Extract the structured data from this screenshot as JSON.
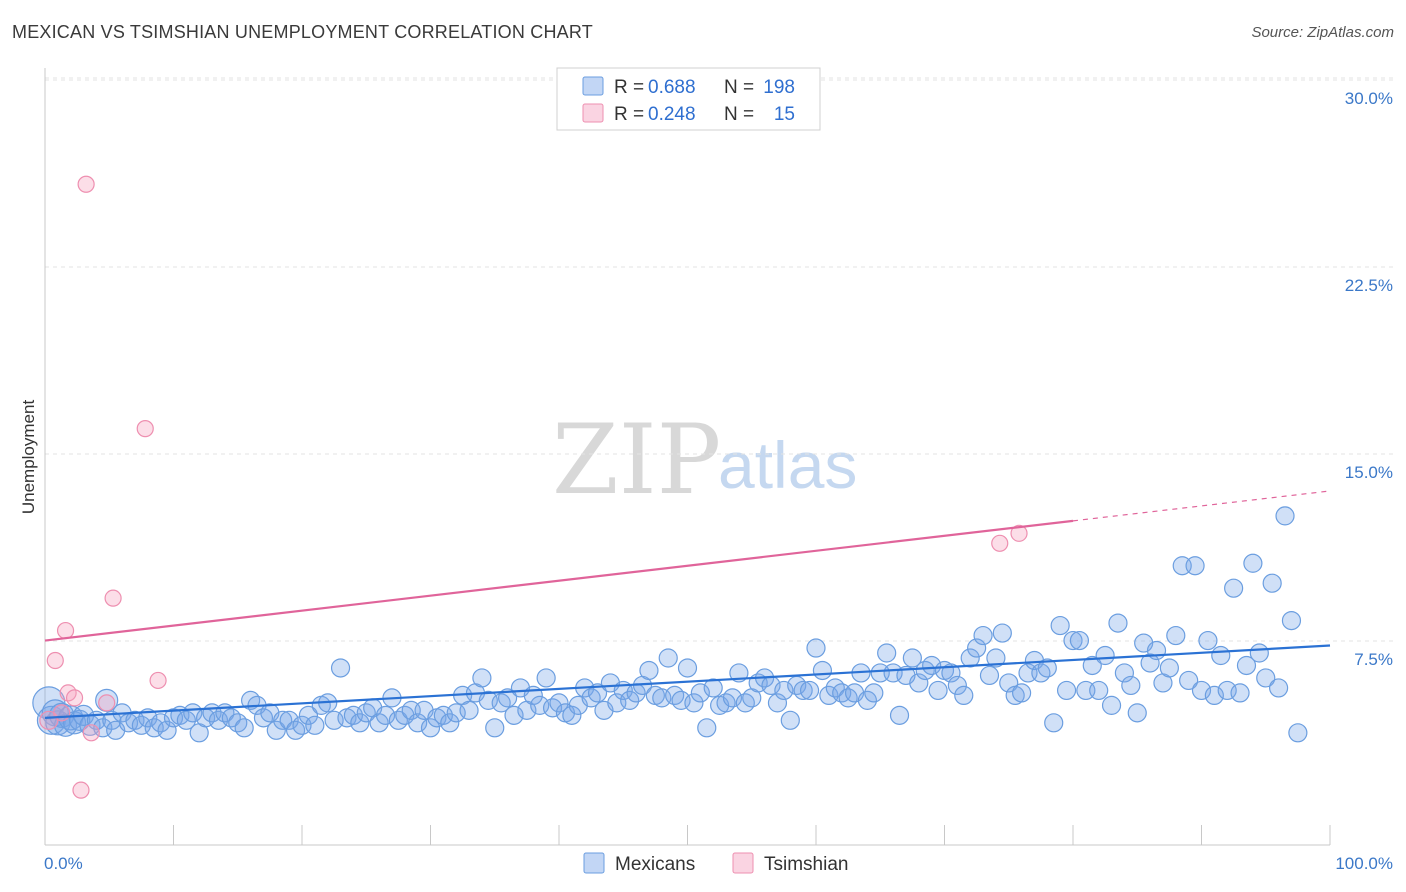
{
  "title": "MEXICAN VS TSIMSHIAN UNEMPLOYMENT CORRELATION CHART",
  "source": "Source: ZipAtlas.com",
  "watermark": {
    "zip": "ZIP",
    "atlas": "atlas"
  },
  "legend": {
    "rows": [
      {
        "r_label": "R =",
        "r_value": "0.688",
        "n_label": "N =",
        "n_value": "198",
        "color": "#7aaae8"
      },
      {
        "r_label": "R =",
        "r_value": "0.248",
        "n_label": "N =",
        "n_value": "15",
        "color": "#f29ab5"
      }
    ]
  },
  "bottom_legend": [
    {
      "label": "Mexicans",
      "color": "#7aaae8"
    },
    {
      "label": "Tsimshian",
      "color": "#f29ab5"
    }
  ],
  "colors": {
    "mexicans_fill": "rgba(120,165,232,0.35)",
    "mexicans_stroke": "#6b9ee0",
    "mexicans_line": "#2b72d4",
    "tsimshian_fill": "rgba(245,160,190,0.35)",
    "tsimshian_stroke": "#ee8fb0",
    "tsimshian_line": "#e0649a"
  },
  "chart_data": {
    "type": "scatter",
    "title": "MEXICAN VS TSIMSHIAN UNEMPLOYMENT CORRELATION CHART",
    "xlabel": "",
    "ylabel": "Unemployment",
    "xlim": [
      0,
      100
    ],
    "ylim": [
      0,
      30
    ],
    "x_tick_labels": [
      "0.0%",
      "100.0%"
    ],
    "y_ticks": [
      7.5,
      15.0,
      22.5,
      30.0
    ],
    "y_tick_labels": [
      "7.5%",
      "15.0%",
      "22.5%",
      "30.0%"
    ],
    "grid": "horizontal dashed",
    "legend_position": "top-center",
    "series": [
      {
        "name": "Mexicans",
        "r": 0.688,
        "n": 198,
        "trendline": {
          "x": [
            0,
            100
          ],
          "y": [
            5.1,
            8.0
          ],
          "style": "solid"
        },
        "points": [
          [
            0.3,
            5.7,
            16
          ],
          [
            0.5,
            5.0,
            14
          ],
          [
            0.8,
            5.3,
            13
          ],
          [
            1.0,
            4.9,
            12
          ],
          [
            1.3,
            5.2,
            12
          ],
          [
            1.6,
            4.8,
            11
          ],
          [
            2.0,
            5.1,
            12
          ],
          [
            2.3,
            4.9,
            11
          ],
          [
            2.7,
            5.0,
            10
          ],
          [
            3.0,
            5.2,
            10
          ],
          [
            3.5,
            4.8,
            10
          ],
          [
            4.0,
            5.0,
            9
          ],
          [
            4.5,
            4.7,
            9
          ],
          [
            4.8,
            5.8,
            11
          ],
          [
            5.2,
            5.0,
            9
          ],
          [
            5.5,
            4.6,
            9
          ],
          [
            6.0,
            5.3,
            9
          ],
          [
            6.5,
            4.9,
            9
          ],
          [
            7.0,
            5.0,
            9
          ],
          [
            7.5,
            4.8,
            9
          ],
          [
            8.0,
            5.1,
            9
          ],
          [
            8.5,
            4.7,
            9
          ],
          [
            9.0,
            4.9,
            9
          ],
          [
            9.5,
            4.6,
            9
          ],
          [
            10.0,
            5.1,
            9
          ],
          [
            10.5,
            5.2,
            9
          ],
          [
            11.0,
            5.0,
            9
          ],
          [
            11.5,
            5.3,
            9
          ],
          [
            12.0,
            4.5,
            9
          ],
          [
            12.5,
            5.1,
            9
          ],
          [
            13.0,
            5.3,
            9
          ],
          [
            13.5,
            5.0,
            9
          ],
          [
            14.0,
            5.3,
            9
          ],
          [
            14.5,
            5.1,
            9
          ],
          [
            15.0,
            4.9,
            9
          ],
          [
            15.5,
            4.7,
            9
          ],
          [
            16.0,
            5.8,
            9
          ],
          [
            16.5,
            5.6,
            9
          ],
          [
            17.0,
            5.1,
            9
          ],
          [
            17.5,
            5.3,
            9
          ],
          [
            18.0,
            4.6,
            9
          ],
          [
            18.5,
            5.0,
            9
          ],
          [
            19.0,
            5.0,
            9
          ],
          [
            19.5,
            4.6,
            9
          ],
          [
            20.0,
            4.8,
            9
          ],
          [
            20.5,
            5.2,
            9
          ],
          [
            21.0,
            4.8,
            9
          ],
          [
            21.5,
            5.6,
            9
          ],
          [
            22.0,
            5.7,
            9
          ],
          [
            22.5,
            5.0,
            9
          ],
          [
            23.0,
            7.1,
            9
          ],
          [
            23.5,
            5.1,
            9
          ],
          [
            24.0,
            5.2,
            9
          ],
          [
            24.5,
            4.9,
            9
          ],
          [
            25.0,
            5.3,
            9
          ],
          [
            25.5,
            5.5,
            9
          ],
          [
            26.0,
            4.9,
            9
          ],
          [
            26.5,
            5.2,
            9
          ],
          [
            27.0,
            5.9,
            9
          ],
          [
            27.5,
            5.0,
            9
          ],
          [
            28.0,
            5.2,
            9
          ],
          [
            28.5,
            5.4,
            9
          ],
          [
            29.0,
            4.9,
            9
          ],
          [
            29.5,
            5.4,
            9
          ],
          [
            30.0,
            4.7,
            9
          ],
          [
            30.5,
            5.1,
            9
          ],
          [
            31.0,
            5.2,
            9
          ],
          [
            31.5,
            4.9,
            9
          ],
          [
            32.0,
            5.3,
            9
          ],
          [
            32.5,
            6.0,
            9
          ],
          [
            33.0,
            5.4,
            9
          ],
          [
            33.5,
            6.1,
            9
          ],
          [
            34.0,
            6.7,
            9
          ],
          [
            34.5,
            5.8,
            9
          ],
          [
            35.0,
            4.7,
            9
          ],
          [
            35.5,
            5.7,
            9
          ],
          [
            36.0,
            5.9,
            9
          ],
          [
            36.5,
            5.2,
            9
          ],
          [
            37.0,
            6.3,
            9
          ],
          [
            37.5,
            5.4,
            9
          ],
          [
            38.0,
            6.0,
            9
          ],
          [
            38.5,
            5.6,
            9
          ],
          [
            39.0,
            6.7,
            9
          ],
          [
            39.5,
            5.5,
            9
          ],
          [
            40.0,
            5.7,
            9
          ],
          [
            40.5,
            5.3,
            9
          ],
          [
            41.0,
            5.2,
            9
          ],
          [
            41.5,
            5.6,
            9
          ],
          [
            42.0,
            6.3,
            9
          ],
          [
            42.5,
            5.9,
            9
          ],
          [
            43.0,
            6.1,
            9
          ],
          [
            43.5,
            5.4,
            9
          ],
          [
            44.0,
            6.5,
            9
          ],
          [
            44.5,
            5.7,
            9
          ],
          [
            45.0,
            6.2,
            9
          ],
          [
            45.5,
            5.8,
            9
          ],
          [
            46.0,
            6.1,
            9
          ],
          [
            46.5,
            6.4,
            9
          ],
          [
            47.0,
            7.0,
            9
          ],
          [
            47.5,
            6.0,
            9
          ],
          [
            48.0,
            5.9,
            9
          ],
          [
            48.5,
            7.5,
            9
          ],
          [
            49.0,
            6.0,
            9
          ],
          [
            49.5,
            5.8,
            9
          ],
          [
            50.0,
            7.1,
            9
          ],
          [
            50.5,
            5.7,
            9
          ],
          [
            51.0,
            6.1,
            9
          ],
          [
            51.5,
            4.7,
            9
          ],
          [
            52.0,
            6.3,
            9
          ],
          [
            52.5,
            5.6,
            9
          ],
          [
            53.0,
            5.7,
            9
          ],
          [
            53.5,
            5.9,
            9
          ],
          [
            54.0,
            6.9,
            9
          ],
          [
            54.5,
            5.7,
            9
          ],
          [
            55.0,
            5.9,
            9
          ],
          [
            55.5,
            6.5,
            9
          ],
          [
            56.0,
            6.7,
            9
          ],
          [
            56.5,
            6.4,
            9
          ],
          [
            57.0,
            5.7,
            9
          ],
          [
            57.5,
            6.2,
            9
          ],
          [
            58.0,
            5.0,
            9
          ],
          [
            58.5,
            6.4,
            9
          ],
          [
            59.0,
            6.2,
            9
          ],
          [
            59.5,
            6.2,
            9
          ],
          [
            60.0,
            7.9,
            9
          ],
          [
            60.5,
            7.0,
            9
          ],
          [
            61.0,
            6.0,
            9
          ],
          [
            61.5,
            6.3,
            9
          ],
          [
            62.0,
            6.1,
            9
          ],
          [
            62.5,
            5.9,
            9
          ],
          [
            63.0,
            6.1,
            9
          ],
          [
            63.5,
            6.9,
            9
          ],
          [
            64.0,
            5.8,
            9
          ],
          [
            64.5,
            6.1,
            9
          ],
          [
            65.0,
            6.9,
            9
          ],
          [
            65.5,
            7.7,
            9
          ],
          [
            66.0,
            6.9,
            9
          ],
          [
            66.5,
            5.2,
            9
          ],
          [
            67.0,
            6.8,
            9
          ],
          [
            67.5,
            7.5,
            9
          ],
          [
            68.0,
            6.5,
            9
          ],
          [
            68.5,
            7.0,
            9
          ],
          [
            69.0,
            7.2,
            9
          ],
          [
            69.5,
            6.2,
            9
          ],
          [
            70.0,
            7.0,
            9
          ],
          [
            70.5,
            6.9,
            9
          ],
          [
            71.0,
            6.4,
            9
          ],
          [
            71.5,
            6.0,
            9
          ],
          [
            72.0,
            7.5,
            9
          ],
          [
            72.5,
            7.9,
            9
          ],
          [
            73.0,
            8.4,
            9
          ],
          [
            73.5,
            6.8,
            9
          ],
          [
            74.0,
            7.5,
            9
          ],
          [
            74.5,
            8.5,
            9
          ],
          [
            75.0,
            6.5,
            9
          ],
          [
            75.5,
            6.0,
            9
          ],
          [
            76.0,
            6.1,
            9
          ],
          [
            76.5,
            6.9,
            9
          ],
          [
            77.0,
            7.4,
            9
          ],
          [
            77.5,
            6.9,
            9
          ],
          [
            78.0,
            7.1,
            9
          ],
          [
            78.5,
            4.9,
            9
          ],
          [
            79.0,
            8.8,
            9
          ],
          [
            79.5,
            6.2,
            9
          ],
          [
            80.0,
            8.2,
            9
          ],
          [
            80.5,
            8.2,
            9
          ],
          [
            81.0,
            6.2,
            9
          ],
          [
            81.5,
            7.2,
            9
          ],
          [
            82.0,
            6.2,
            9
          ],
          [
            82.5,
            7.6,
            9
          ],
          [
            83.0,
            5.6,
            9
          ],
          [
            83.5,
            8.9,
            9
          ],
          [
            84.0,
            6.9,
            9
          ],
          [
            84.5,
            6.4,
            9
          ],
          [
            85.0,
            5.3,
            9
          ],
          [
            85.5,
            8.1,
            9
          ],
          [
            86.0,
            7.3,
            9
          ],
          [
            86.5,
            7.8,
            9
          ],
          [
            87.0,
            6.5,
            9
          ],
          [
            87.5,
            7.1,
            9
          ],
          [
            88.0,
            8.4,
            9
          ],
          [
            88.5,
            11.2,
            9
          ],
          [
            89.0,
            6.6,
            9
          ],
          [
            89.5,
            11.2,
            9
          ],
          [
            90.0,
            6.2,
            9
          ],
          [
            90.5,
            8.2,
            9
          ],
          [
            91.0,
            6.0,
            9
          ],
          [
            91.5,
            7.6,
            9
          ],
          [
            92.0,
            6.2,
            9
          ],
          [
            92.5,
            10.3,
            9
          ],
          [
            93.0,
            6.1,
            9
          ],
          [
            93.5,
            7.2,
            9
          ],
          [
            94.0,
            11.3,
            9
          ],
          [
            94.5,
            7.7,
            9
          ],
          [
            95.0,
            6.7,
            9
          ],
          [
            95.5,
            10.5,
            9
          ],
          [
            96.0,
            6.3,
            9
          ],
          [
            96.5,
            13.2,
            9
          ],
          [
            97.0,
            9.0,
            9
          ],
          [
            97.5,
            4.5,
            9
          ]
        ]
      },
      {
        "name": "Tsimshian",
        "r": 0.248,
        "n": 15,
        "trendline": {
          "x": [
            0,
            80
          ],
          "y": [
            8.2,
            13.0
          ],
          "x_dashed": [
            80,
            100
          ],
          "y_dashed": [
            13.0,
            14.2
          ]
        },
        "points": [
          [
            0.3,
            5.0,
            9
          ],
          [
            0.8,
            7.4,
            8
          ],
          [
            1.3,
            5.3,
            8
          ],
          [
            1.6,
            8.6,
            8
          ],
          [
            1.8,
            6.1,
            8
          ],
          [
            2.3,
            5.9,
            8
          ],
          [
            2.8,
            2.2,
            8
          ],
          [
            3.2,
            26.5,
            8
          ],
          [
            3.6,
            4.5,
            8
          ],
          [
            4.8,
            5.7,
            8
          ],
          [
            5.3,
            9.9,
            8
          ],
          [
            7.8,
            16.7,
            8
          ],
          [
            8.8,
            6.6,
            8
          ],
          [
            74.3,
            12.1,
            8
          ],
          [
            75.8,
            12.5,
            8
          ]
        ]
      }
    ]
  }
}
